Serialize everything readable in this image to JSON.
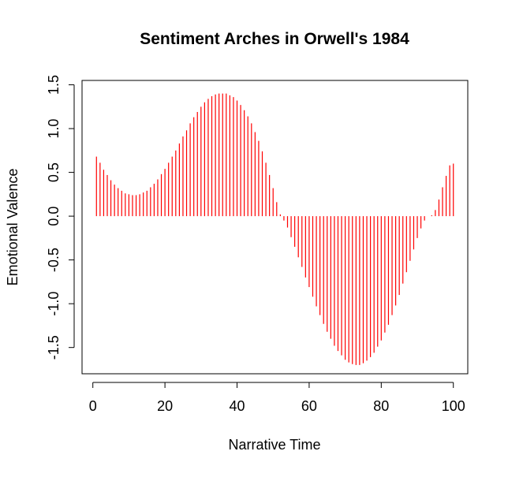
{
  "chart_data": {
    "type": "bar",
    "title": "Sentiment Arches in Orwell's 1984",
    "xlabel": "Narrative Time",
    "ylabel": "Emotional Valence",
    "xlim": [
      -3,
      104
    ],
    "ylim": [
      -1.8,
      1.55
    ],
    "xticks": [
      0,
      20,
      40,
      60,
      80,
      100
    ],
    "xtick_labels": [
      "0",
      "20",
      "40",
      "60",
      "80",
      "100"
    ],
    "yticks": [
      -1.5,
      -1.0,
      -0.5,
      0.0,
      0.5,
      1.0,
      1.5
    ],
    "ytick_labels": [
      "-1.5",
      "-1.0",
      "-0.5",
      "0.0",
      "0.5",
      "1.0",
      "1.5"
    ],
    "grid": false,
    "legend": "none",
    "bar_color": "#ff0000",
    "x": [
      1,
      2,
      3,
      4,
      5,
      6,
      7,
      8,
      9,
      10,
      11,
      12,
      13,
      14,
      15,
      16,
      17,
      18,
      19,
      20,
      21,
      22,
      23,
      24,
      25,
      26,
      27,
      28,
      29,
      30,
      31,
      32,
      33,
      34,
      35,
      36,
      37,
      38,
      39,
      40,
      41,
      42,
      43,
      44,
      45,
      46,
      47,
      48,
      49,
      50,
      51,
      52,
      53,
      54,
      55,
      56,
      57,
      58,
      59,
      60,
      61,
      62,
      63,
      64,
      65,
      66,
      67,
      68,
      69,
      70,
      71,
      72,
      73,
      74,
      75,
      76,
      77,
      78,
      79,
      80,
      81,
      82,
      83,
      84,
      85,
      86,
      87,
      88,
      89,
      90,
      91,
      92,
      93,
      94,
      95,
      96,
      97,
      98,
      99,
      100
    ],
    "values": [
      0.68,
      0.61,
      0.53,
      0.47,
      0.41,
      0.36,
      0.32,
      0.29,
      0.26,
      0.25,
      0.24,
      0.24,
      0.25,
      0.27,
      0.29,
      0.33,
      0.37,
      0.42,
      0.48,
      0.54,
      0.61,
      0.68,
      0.75,
      0.83,
      0.91,
      0.98,
      1.06,
      1.13,
      1.19,
      1.25,
      1.3,
      1.34,
      1.37,
      1.39,
      1.4,
      1.4,
      1.4,
      1.38,
      1.36,
      1.32,
      1.27,
      1.21,
      1.14,
      1.06,
      0.96,
      0.86,
      0.74,
      0.61,
      0.47,
      0.32,
      0.16,
      0.02,
      -0.05,
      -0.13,
      -0.24,
      -0.35,
      -0.47,
      -0.58,
      -0.7,
      -0.81,
      -0.92,
      -1.03,
      -1.13,
      -1.23,
      -1.32,
      -1.4,
      -1.48,
      -1.54,
      -1.59,
      -1.64,
      -1.67,
      -1.69,
      -1.7,
      -1.7,
      -1.68,
      -1.65,
      -1.61,
      -1.56,
      -1.49,
      -1.42,
      -1.33,
      -1.24,
      -1.13,
      -1.02,
      -0.9,
      -0.77,
      -0.64,
      -0.51,
      -0.38,
      -0.25,
      -0.14,
      -0.05,
      0.0,
      0.01,
      0.07,
      0.19,
      0.33,
      0.46,
      0.58,
      0.6
    ]
  }
}
